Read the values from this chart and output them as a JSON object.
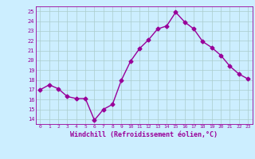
{
  "x": [
    0,
    1,
    2,
    3,
    4,
    5,
    6,
    7,
    8,
    9,
    10,
    11,
    12,
    13,
    14,
    15,
    16,
    17,
    18,
    19,
    20,
    21,
    22,
    23
  ],
  "y": [
    17.0,
    17.5,
    17.1,
    16.3,
    16.1,
    16.1,
    13.9,
    15.0,
    15.5,
    18.0,
    19.9,
    21.2,
    22.1,
    23.2,
    23.5,
    24.9,
    23.9,
    23.2,
    21.9,
    21.3,
    20.5,
    19.4,
    18.6,
    18.1
  ],
  "line_color": "#990099",
  "marker": "D",
  "marker_size": 2.5,
  "bg_color": "#cceeff",
  "grid_color": "#aacccc",
  "xlabel": "Windchill (Refroidissement éolien,°C)",
  "xlim": [
    -0.5,
    23.5
  ],
  "ylim": [
    13.5,
    25.5
  ],
  "yticks": [
    14,
    15,
    16,
    17,
    18,
    19,
    20,
    21,
    22,
    23,
    24,
    25
  ],
  "xticks": [
    0,
    1,
    2,
    3,
    4,
    5,
    6,
    7,
    8,
    9,
    10,
    11,
    12,
    13,
    14,
    15,
    16,
    17,
    18,
    19,
    20,
    21,
    22,
    23
  ],
  "tick_color": "#990099",
  "label_color": "#990099",
  "linewidth": 1.0
}
